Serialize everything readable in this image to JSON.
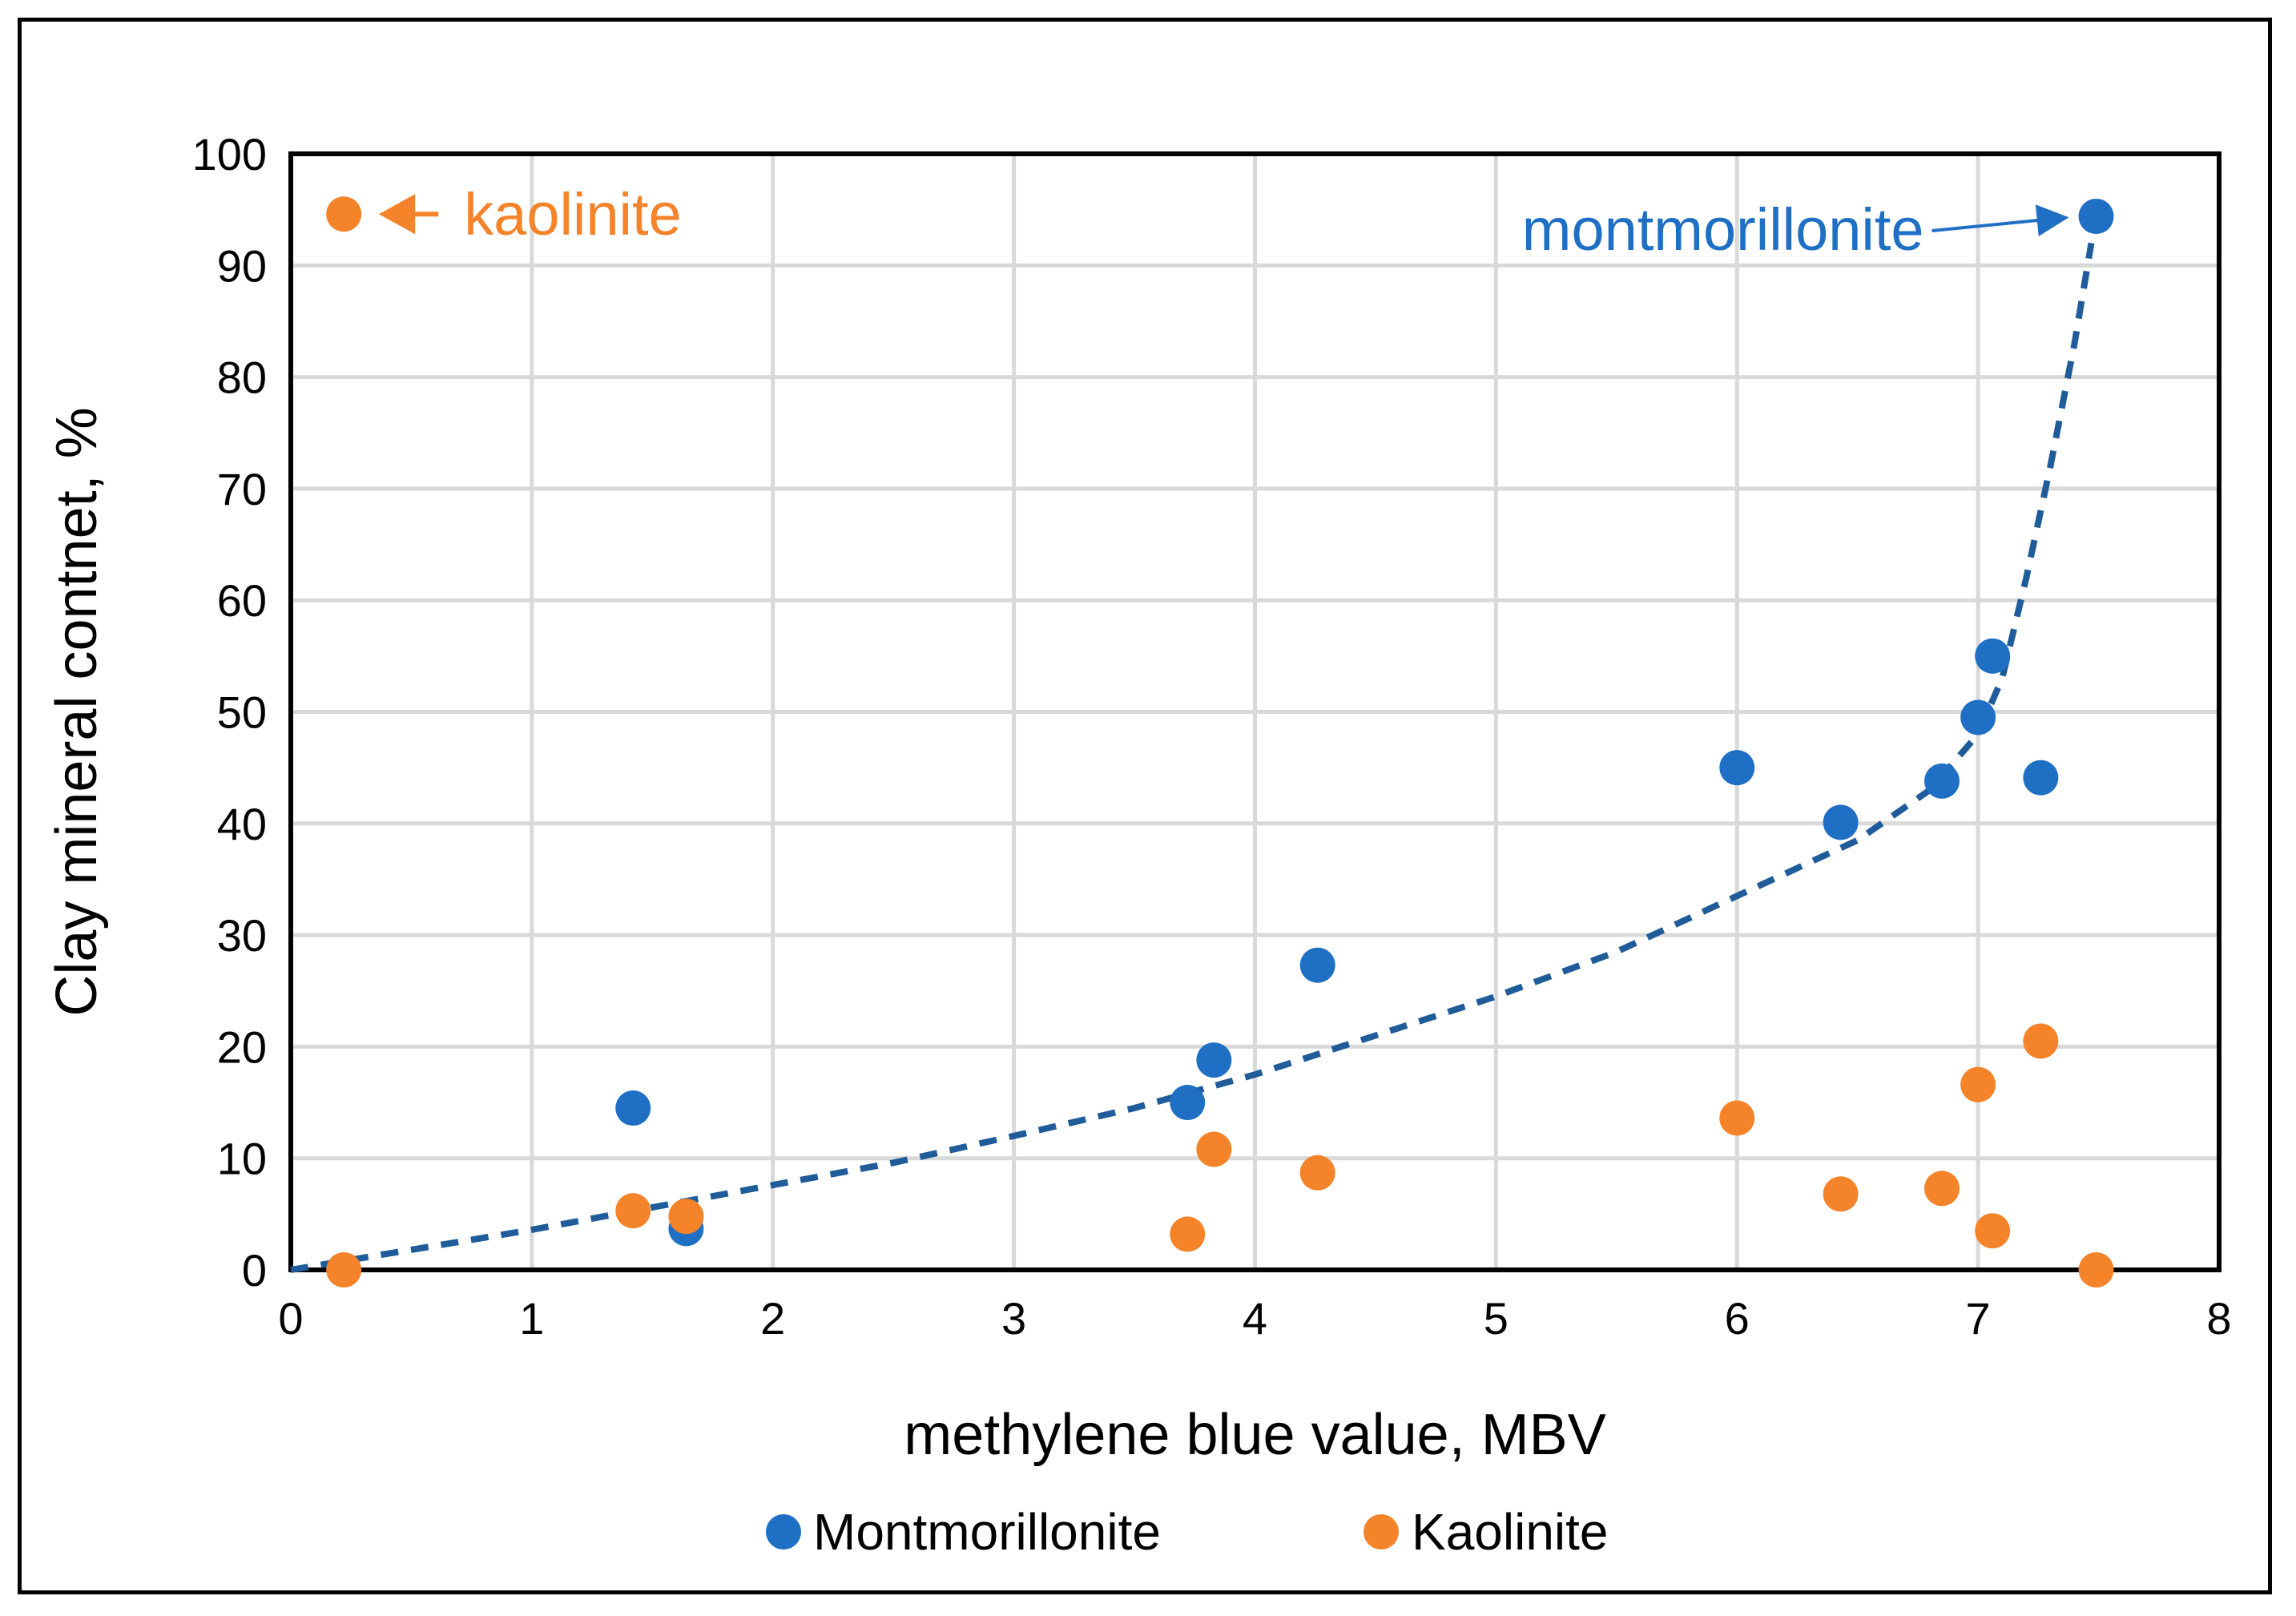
{
  "chart_data": {
    "type": "scatter",
    "title": "",
    "xlabel": "methylene blue value, MBV",
    "ylabel": "Clay mineral contnet, %",
    "xlim": [
      0,
      8
    ],
    "ylim": [
      0,
      100
    ],
    "xticks": [
      "0",
      "1",
      "2",
      "3",
      "4",
      "5",
      "6",
      "7",
      "8"
    ],
    "yticks": [
      "0",
      "10",
      "20",
      "30",
      "40",
      "50",
      "60",
      "70",
      "80",
      "90",
      "100"
    ],
    "grid": true,
    "legend_position": "bottom",
    "series": [
      {
        "name": "Montmorillonite",
        "color": "#1F6FC4",
        "points": [
          {
            "x": 1.42,
            "y": 14.5
          },
          {
            "x": 1.64,
            "y": 3.7
          },
          {
            "x": 3.72,
            "y": 15.0
          },
          {
            "x": 3.83,
            "y": 18.8
          },
          {
            "x": 4.26,
            "y": 27.3
          },
          {
            "x": 6.0,
            "y": 45.0
          },
          {
            "x": 6.43,
            "y": 40.1
          },
          {
            "x": 6.85,
            "y": 43.8
          },
          {
            "x": 7.0,
            "y": 49.5
          },
          {
            "x": 7.06,
            "y": 55.0
          },
          {
            "x": 7.26,
            "y": 44.1
          },
          {
            "x": 7.49,
            "y": 94.4
          }
        ]
      },
      {
        "name": "Kaolinite",
        "color": "#F5832A",
        "points": [
          {
            "x": 0.22,
            "y": 0.0
          },
          {
            "x": 1.42,
            "y": 5.3
          },
          {
            "x": 1.64,
            "y": 4.8
          },
          {
            "x": 3.72,
            "y": 3.2
          },
          {
            "x": 3.83,
            "y": 10.8
          },
          {
            "x": 4.26,
            "y": 8.7
          },
          {
            "x": 6.0,
            "y": 13.6
          },
          {
            "x": 6.43,
            "y": 6.8
          },
          {
            "x": 6.85,
            "y": 7.3
          },
          {
            "x": 7.0,
            "y": 16.6
          },
          {
            "x": 7.06,
            "y": 3.5
          },
          {
            "x": 7.26,
            "y": 20.5
          },
          {
            "x": 7.49,
            "y": 0.0
          }
        ]
      }
    ],
    "trendline": {
      "color": "#1F5C99",
      "style": "dashed",
      "points": [
        {
          "x": 0,
          "y": 0
        },
        {
          "x": 0.5,
          "y": 1.8
        },
        {
          "x": 1.0,
          "y": 3.6
        },
        {
          "x": 1.5,
          "y": 5.6
        },
        {
          "x": 2.0,
          "y": 7.6
        },
        {
          "x": 2.5,
          "y": 9.6
        },
        {
          "x": 3.0,
          "y": 12.0
        },
        {
          "x": 3.5,
          "y": 14.5
        },
        {
          "x": 4.0,
          "y": 17.5
        },
        {
          "x": 4.5,
          "y": 21.0
        },
        {
          "x": 5.0,
          "y": 24.5
        },
        {
          "x": 5.5,
          "y": 28.5
        },
        {
          "x": 6.0,
          "y": 33.5
        },
        {
          "x": 6.5,
          "y": 38.5
        },
        {
          "x": 6.8,
          "y": 43.0
        },
        {
          "x": 7.0,
          "y": 48.0
        },
        {
          "x": 7.1,
          "y": 53.0
        },
        {
          "x": 7.2,
          "y": 62.0
        },
        {
          "x": 7.3,
          "y": 72.0
        },
        {
          "x": 7.4,
          "y": 83.0
        },
        {
          "x": 7.47,
          "y": 92.0
        }
      ]
    },
    "annotations": [
      {
        "text": "kaolinite",
        "color": "#F5832A",
        "marker_point": {
          "x": 0.22,
          "y": 94.6
        }
      },
      {
        "text": "montmorillonite",
        "color": "#1F6FC4",
        "target_point": {
          "x": 7.49,
          "y": 94.4
        }
      }
    ]
  }
}
